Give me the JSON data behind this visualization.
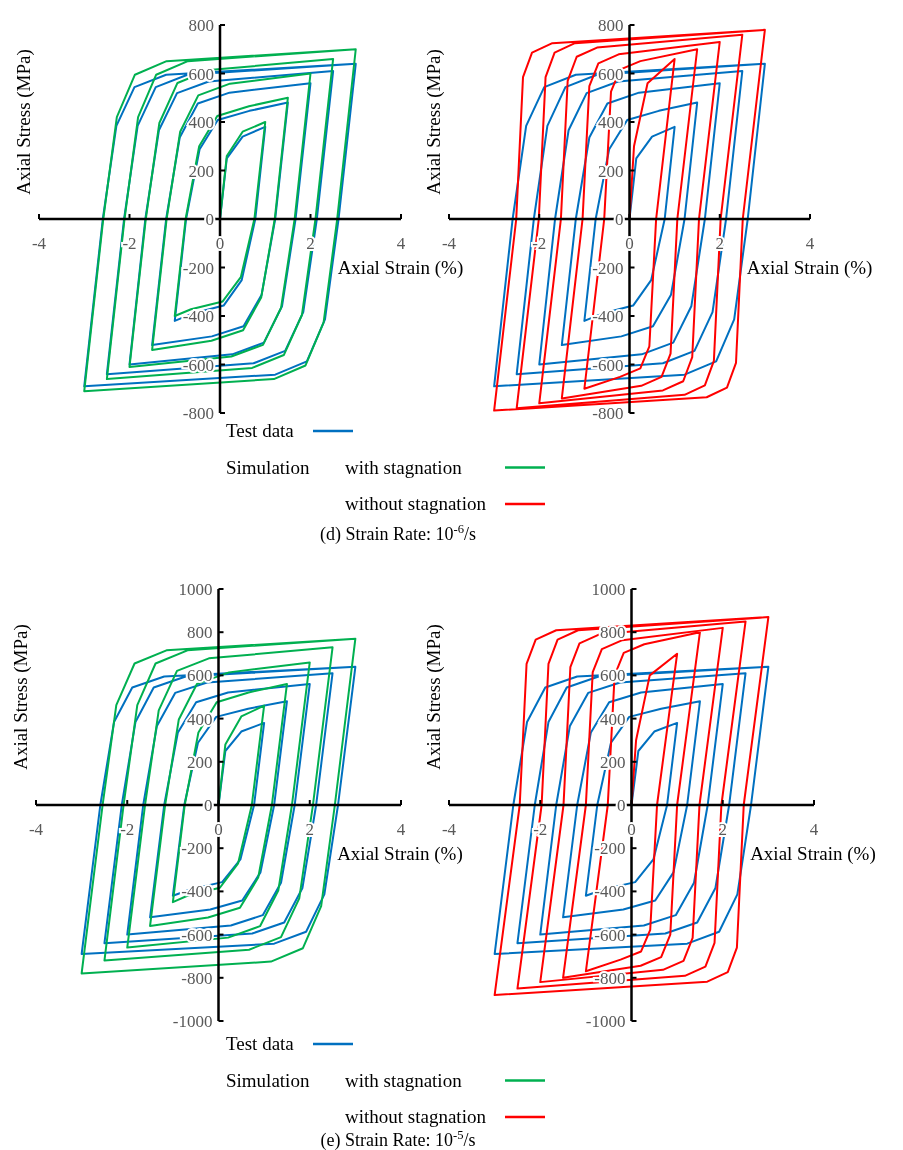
{
  "chart_data": [
    {
      "type": "line",
      "xlabel": "Axial Strain (%)",
      "ylabel": "Axial Stress (MPa)",
      "xlim": [
        -4,
        4
      ],
      "xticks": [
        -4,
        -2,
        0,
        2,
        4
      ],
      "ylim": [
        -800,
        800
      ],
      "yticks": [
        -800,
        -600,
        -400,
        -200,
        0,
        200,
        400,
        600,
        800
      ],
      "legend": "bottom",
      "annotations": [
        "Simulation",
        "(d) Strain Rate: 10$^{-6}$/s"
      ],
      "series": [
        {
          "name": "Test data",
          "color": "#0070c0",
          "x": [
            0,
            0.15,
            0.5,
            1,
            0.78,
            0.48,
            0.08,
            -0.62,
            -1,
            -0.75,
            -0.45,
            -0.05,
            0.65,
            1.5,
            1.22,
            0.92,
            0.52,
            -0.18,
            -1.5,
            -1.19,
            -0.89,
            -0.49,
            0.21,
            2,
            1.67,
            1.37,
            0.97,
            0.27,
            -2,
            -1.65,
            -1.35,
            -0.95,
            -0.25,
            2.5,
            2.14,
            1.84,
            1.44,
            0.74,
            -2.5,
            -2.12,
            -1.82,
            -1.42,
            -0.72,
            3,
            2.62,
            2.32,
            1.92,
            1.22,
            -3,
            -2.59,
            -2.29,
            -1.89,
            -1.19,
            3
          ],
          "values": [
            0,
            250,
            340,
            380,
            0,
            -252,
            -357,
            -391,
            -420,
            0,
            288,
            408,
            446,
            480,
            0,
            -312,
            -442,
            -484,
            -520,
            0,
            336,
            476,
            521,
            560,
            0,
            -360,
            -510,
            -558,
            -600,
            0,
            366,
            519,
            567,
            610,
            0,
            -384,
            -544,
            -595,
            -640,
            0,
            384,
            544,
            595,
            640,
            0,
            -414,
            -587,
            -642,
            -690,
            0,
            384,
            544,
            595,
            640
          ]
        },
        {
          "name": "with stagnation",
          "color": "#00b050",
          "x": [
            0,
            0.15,
            0.5,
            1,
            0.76,
            0.46,
            0.06,
            -0.64,
            -1,
            -0.76,
            -0.46,
            -0.06,
            0.64,
            1.5,
            1.21,
            0.91,
            0.51,
            -0.19,
            -1.5,
            -1.18,
            -0.88,
            -0.48,
            0.22,
            2,
            1.65,
            1.35,
            0.95,
            0.25,
            -2,
            -1.64,
            -1.34,
            -0.94,
            -0.24,
            2.5,
            2.11,
            1.81,
            1.41,
            0.71,
            -2.5,
            -2.11,
            -1.81,
            -1.41,
            -0.71,
            3,
            2.59,
            2.29,
            1.89,
            1.19,
            -3,
            -2.58,
            -2.28,
            -1.88,
            -1.18,
            3
          ],
          "values": [
            0,
            260,
            360,
            400,
            0,
            -240,
            -340,
            -372,
            -400,
            0,
            300,
            425,
            465,
            500,
            0,
            -324,
            -459,
            -502,
            -540,
            0,
            360,
            510,
            558,
            600,
            0,
            -366,
            -519,
            -567,
            -610,
            0,
            396,
            561,
            614,
            660,
            0,
            -396,
            -561,
            -614,
            -660,
            0,
            420,
            595,
            651,
            700,
            0,
            -426,
            -604,
            -660,
            -710,
            0,
            420,
            595,
            651,
            700
          ]
        }
      ]
    },
    {
      "type": "line",
      "xlabel": "Axial Strain (%)",
      "ylabel": "Axial Stress (MPa)",
      "xlim": [
        -4,
        4
      ],
      "xticks": [
        -4,
        -2,
        0,
        2,
        4
      ],
      "ylim": [
        -800,
        800
      ],
      "yticks": [
        -800,
        -600,
        -400,
        -200,
        0,
        200,
        400,
        600,
        800
      ],
      "legend": "bottom",
      "series": [
        {
          "color": "#0070c0",
          "x": [
            0,
            0.15,
            0.5,
            1,
            0.78,
            0.48,
            0.08,
            -0.62,
            -1,
            -0.75,
            -0.45,
            -0.05,
            0.65,
            1.5,
            1.22,
            0.92,
            0.52,
            -0.18,
            -1.5,
            -1.19,
            -0.89,
            -0.49,
            0.21,
            2,
            1.67,
            1.37,
            0.97,
            0.27,
            -2,
            -1.65,
            -1.35,
            -0.95,
            -0.25,
            2.5,
            2.14,
            1.84,
            1.44,
            0.74,
            -2.5,
            -2.12,
            -1.82,
            -1.42,
            -0.72,
            3,
            2.62,
            2.32,
            1.92,
            1.22,
            -3,
            -2.59,
            -2.29,
            -1.89,
            -1.19,
            3
          ],
          "values": [
            0,
            250,
            340,
            380,
            0,
            -252,
            -357,
            -391,
            -420,
            0,
            288,
            408,
            446,
            480,
            0,
            -312,
            -442,
            -484,
            -520,
            0,
            336,
            476,
            521,
            560,
            0,
            -360,
            -510,
            -558,
            -600,
            0,
            366,
            519,
            567,
            610,
            0,
            -384,
            -544,
            -595,
            -640,
            0,
            384,
            544,
            595,
            640,
            0,
            -414,
            -587,
            -642,
            -690,
            0,
            384,
            544,
            595,
            640
          ]
        },
        {
          "name": "without stagnation",
          "color": "#ff0000",
          "x": [
            0,
            0.1,
            0.4,
            1,
            0.59,
            0.44,
            0.24,
            -0.21,
            -1,
            -0.56,
            -0.41,
            -0.21,
            0.24,
            1.5,
            1.06,
            0.91,
            0.71,
            0.26,
            -1.5,
            -1.04,
            -0.89,
            -0.69,
            -0.24,
            2,
            1.54,
            1.39,
            1.19,
            0.74,
            -2,
            -1.52,
            -1.37,
            -1.17,
            -0.72,
            2.5,
            2.02,
            1.87,
            1.67,
            1.22,
            -2.5,
            -2.01,
            -1.86,
            -1.66,
            -1.21,
            3,
            2.51,
            2.36,
            2.16,
            1.71,
            -3,
            -2.51,
            -2.36,
            -2.16,
            -1.71,
            3
          ],
          "values": [
            0,
            300,
            560,
            660,
            0,
            -525,
            -616,
            -651,
            -700,
            0,
            525,
            616,
            651,
            700,
            0,
            -555,
            -651,
            -688,
            -740,
            0,
            548,
            642,
            679,
            730,
            0,
            -570,
            -669,
            -707,
            -760,
            0,
            570,
            669,
            707,
            760,
            0,
            -585,
            -686,
            -725,
            -780,
            0,
            585,
            686,
            725,
            780,
            0,
            -593,
            -695,
            -735,
            -790,
            0,
            585,
            686,
            725,
            780
          ]
        }
      ]
    },
    {
      "type": "line",
      "xlabel": "Axial Strain (%)",
      "ylabel": "Axial Stress (MPa)",
      "xlim": [
        -4,
        4
      ],
      "xticks": [
        -4,
        -2,
        0,
        2,
        4
      ],
      "ylim": [
        -1000,
        1000
      ],
      "yticks": [
        -1000,
        -800,
        -600,
        -400,
        -200,
        0,
        200,
        400,
        600,
        800,
        1000
      ],
      "legend": "bottom",
      "annotations": [
        "Simulation",
        "(e) Strain Rate: 10$^{-5}$/s"
      ],
      "series": [
        {
          "name": "Test data",
          "color": "#0070c0",
          "x": [
            0,
            0.15,
            0.5,
            1,
            0.78,
            0.48,
            0.08,
            -0.62,
            -1,
            -0.75,
            -0.45,
            -0.05,
            0.65,
            1.5,
            1.22,
            0.92,
            0.52,
            -0.18,
            -1.5,
            -1.19,
            -0.89,
            -0.49,
            0.21,
            2,
            1.67,
            1.37,
            0.97,
            0.27,
            -2,
            -1.65,
            -1.35,
            -0.95,
            -0.25,
            2.5,
            2.14,
            1.84,
            1.44,
            0.74,
            -2.5,
            -2.12,
            -1.82,
            -1.42,
            -0.72,
            3,
            2.62,
            2.32,
            1.92,
            1.22,
            -3,
            -2.59,
            -2.29,
            -1.89,
            -1.19,
            3
          ],
          "values": [
            0,
            250,
            340,
            380,
            0,
            -252,
            -357,
            -391,
            -420,
            0,
            288,
            408,
            446,
            480,
            0,
            -312,
            -442,
            -484,
            -520,
            0,
            336,
            476,
            521,
            560,
            0,
            -360,
            -510,
            -558,
            -600,
            0,
            366,
            519,
            567,
            610,
            0,
            -384,
            -544,
            -595,
            -640,
            0,
            384,
            544,
            595,
            640,
            0,
            -414,
            -587,
            -642,
            -690,
            0,
            384,
            544,
            595,
            640
          ]
        },
        {
          "name": "with stagnation",
          "color": "#00b050",
          "x": [
            0,
            0.15,
            0.5,
            1,
            0.73,
            0.43,
            0.03,
            -0.67,
            -1,
            -0.74,
            -0.44,
            -0.04,
            0.66,
            1.5,
            1.17,
            0.87,
            0.47,
            -0.23,
            -1.5,
            -1.17,
            -0.87,
            -0.47,
            0.23,
            2,
            1.61,
            1.31,
            0.91,
            0.21,
            -2,
            -1.61,
            -1.31,
            -0.91,
            -0.21,
            2.5,
            2.07,
            1.77,
            1.37,
            0.67,
            -2.5,
            -2.08,
            -1.78,
            -1.38,
            -0.68,
            3,
            2.55,
            2.25,
            1.85,
            1.15,
            -3,
            -2.54,
            -2.24,
            -1.84,
            -1.14,
            3
          ],
          "values": [
            0,
            280,
            410,
            460,
            0,
            -270,
            -383,
            -419,
            -450,
            0,
            336,
            476,
            521,
            560,
            0,
            -336,
            -476,
            -521,
            -560,
            0,
            396,
            561,
            614,
            660,
            0,
            -396,
            -561,
            -614,
            -660,
            0,
            438,
            621,
            679,
            730,
            0,
            -432,
            -612,
            -670,
            -720,
            0,
            462,
            655,
            716,
            770,
            0,
            -468,
            -663,
            -725,
            -780,
            0,
            462,
            655,
            716,
            770
          ]
        }
      ]
    },
    {
      "type": "line",
      "xlabel": "Axial Strain (%)",
      "ylabel": "Axial Stress (MPa)",
      "xlim": [
        -4,
        4
      ],
      "xticks": [
        -4,
        -2,
        0,
        2,
        4
      ],
      "ylim": [
        -1000,
        1000
      ],
      "yticks": [
        -1000,
        -800,
        -600,
        -400,
        -200,
        0,
        200,
        400,
        600,
        800,
        1000
      ],
      "legend": "bottom",
      "series": [
        {
          "color": "#0070c0",
          "x": [
            0,
            0.15,
            0.5,
            1,
            0.78,
            0.48,
            0.08,
            -0.62,
            -1,
            -0.75,
            -0.45,
            -0.05,
            0.65,
            1.5,
            1.22,
            0.92,
            0.52,
            -0.18,
            -1.5,
            -1.19,
            -0.89,
            -0.49,
            0.21,
            2,
            1.67,
            1.37,
            0.97,
            0.27,
            -2,
            -1.65,
            -1.35,
            -0.95,
            -0.25,
            2.5,
            2.14,
            1.84,
            1.44,
            0.74,
            -2.5,
            -2.12,
            -1.82,
            -1.42,
            -0.72,
            3,
            2.62,
            2.32,
            1.92,
            1.22,
            -3,
            -2.59,
            -2.29,
            -1.89,
            -1.19,
            3
          ],
          "values": [
            0,
            250,
            340,
            380,
            0,
            -252,
            -357,
            -391,
            -420,
            0,
            288,
            408,
            446,
            480,
            0,
            -312,
            -442,
            -484,
            -520,
            0,
            336,
            476,
            521,
            560,
            0,
            -360,
            -510,
            -558,
            -600,
            0,
            366,
            519,
            567,
            610,
            0,
            -384,
            -544,
            -595,
            -640,
            0,
            384,
            544,
            595,
            640,
            0,
            -414,
            -587,
            -642,
            -690,
            0,
            384,
            544,
            595,
            640
          ]
        },
        {
          "name": "without stagnation",
          "color": "#ff0000",
          "x": [
            0,
            0.1,
            0.4,
            1,
            0.56,
            0.41,
            0.21,
            -0.24,
            -1,
            -0.52,
            -0.37,
            -0.17,
            0.28,
            1.5,
            1,
            0.85,
            0.65,
            0.2,
            -1.5,
            -1,
            -0.85,
            -0.65,
            -0.2,
            2,
            1.49,
            1.34,
            1.14,
            0.69,
            -2,
            -1.49,
            -1.34,
            -1.14,
            -0.69,
            2.5,
            1.97,
            1.82,
            1.62,
            1.17,
            -2.5,
            -1.97,
            -1.82,
            -1.62,
            -1.17,
            3,
            2.46,
            2.31,
            2.11,
            1.66,
            -3,
            -2.45,
            -2.3,
            -2.1,
            -1.65,
            3
          ],
          "values": [
            0,
            300,
            600,
            700,
            0,
            -578,
            -678,
            -716,
            -770,
            0,
            600,
            704,
            744,
            800,
            0,
            -600,
            -704,
            -744,
            -800,
            0,
            615,
            722,
            763,
            820,
            0,
            -615,
            -722,
            -763,
            -820,
            0,
            638,
            748,
            791,
            850,
            0,
            -638,
            -748,
            -791,
            -850,
            0,
            653,
            766,
            809,
            870,
            0,
            -660,
            -774,
            -818,
            -880,
            0,
            653,
            766,
            809,
            870
          ]
        }
      ]
    }
  ]
}
